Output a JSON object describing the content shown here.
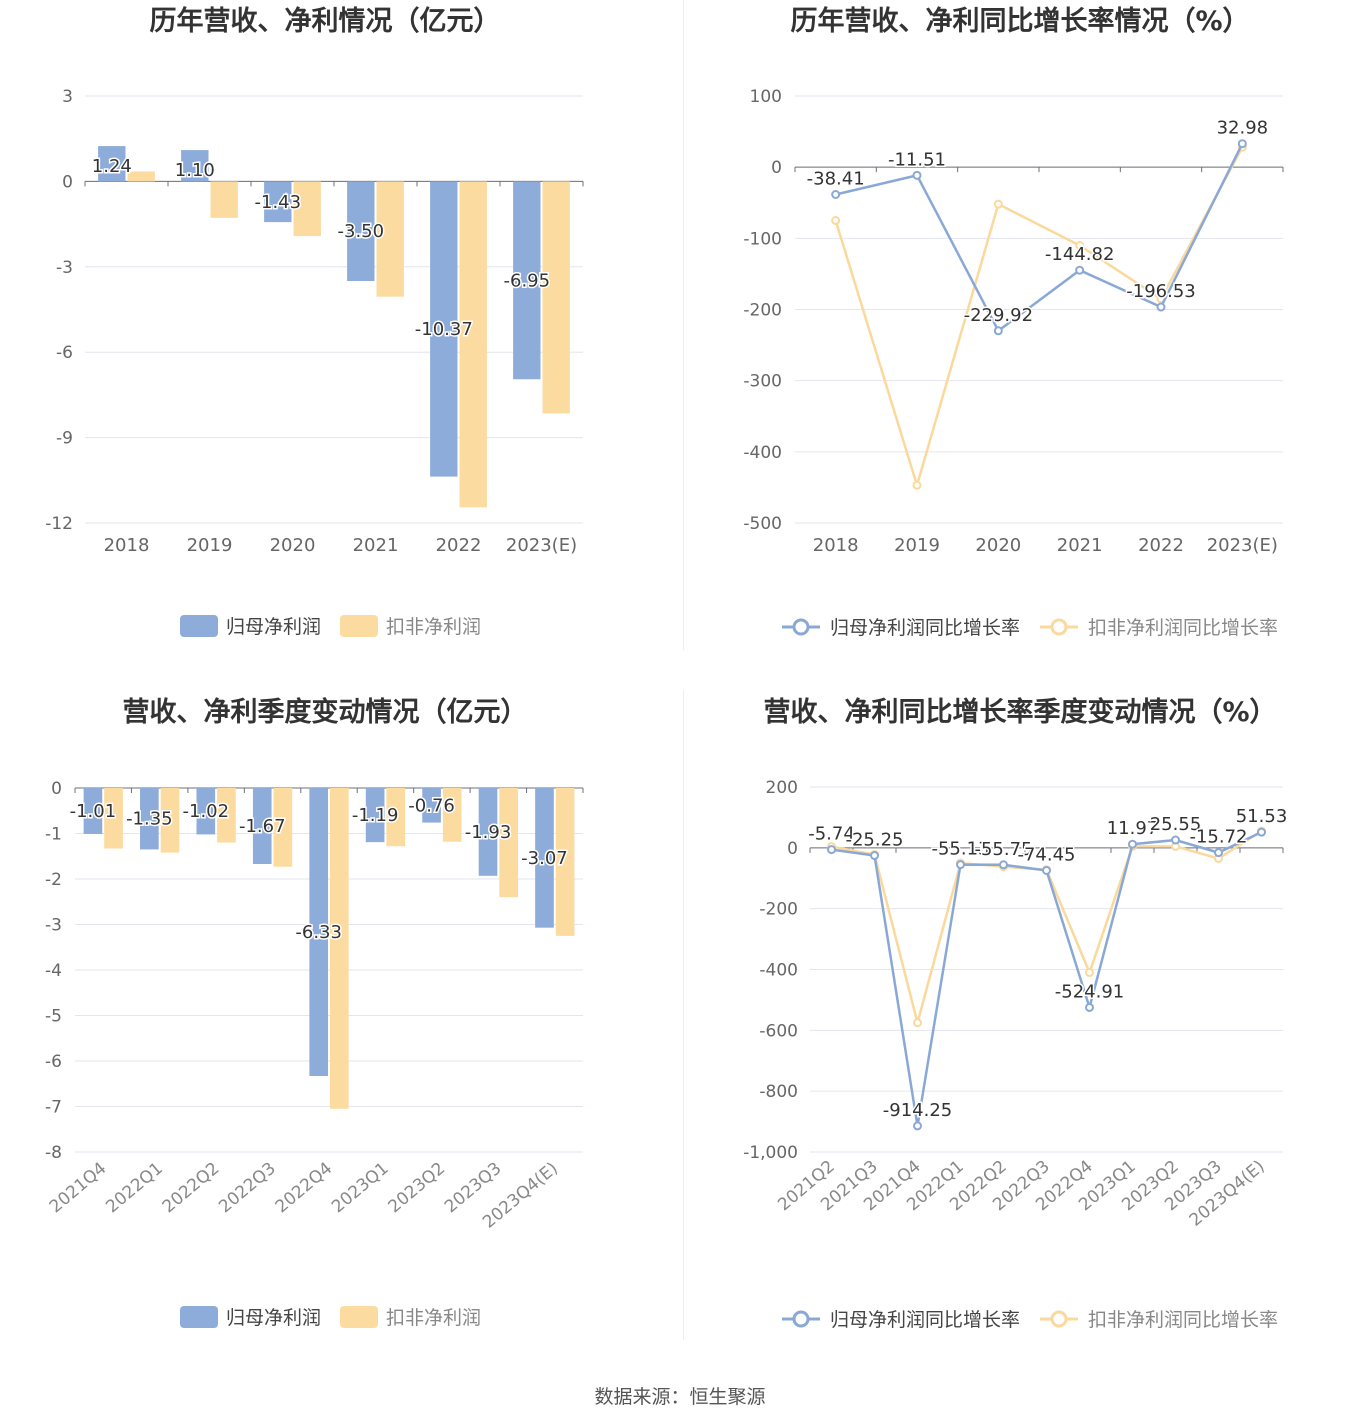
{
  "colors": {
    "blue": "#8eacd9",
    "yellow": "#fcdba0",
    "blue_line": "#8aa8d6",
    "yellow_line": "#fbd89b"
  },
  "source": "数据来源：恒生聚源",
  "chart_data": [
    {
      "type": "bar",
      "title": "历年营收、净利情况（亿元）",
      "categories": [
        "2018",
        "2019",
        "2020",
        "2021",
        "2022",
        "2023(E)"
      ],
      "series": [
        {
          "name": "归母净利润",
          "values": [
            1.24,
            1.1,
            -1.43,
            -3.5,
            -10.37,
            -6.95
          ]
        },
        {
          "name": "扣非净利润",
          "values": [
            0.35,
            -1.28,
            -1.92,
            -4.05,
            -11.45,
            -8.15
          ]
        }
      ],
      "labels": [
        "1.24",
        "1.10",
        "-1.43",
        "-3.50",
        "-10.37",
        "-6.95"
      ],
      "yticks": [
        "3",
        "0",
        "-3",
        "-6",
        "-9",
        "-12"
      ],
      "ylim": [
        -12,
        3
      ],
      "legend_position": "bottom"
    },
    {
      "type": "line",
      "title": "历年营收、净利同比增长率情况（%）",
      "categories": [
        "2018",
        "2019",
        "2020",
        "2021",
        "2022",
        "2023(E)"
      ],
      "series": [
        {
          "name": "归母净利润同比增长率",
          "values": [
            -38.41,
            -11.51,
            -229.92,
            -144.82,
            -196.53,
            32.98
          ]
        },
        {
          "name": "扣非净利润同比增长率",
          "values": [
            -75,
            -447,
            -52,
            -110,
            -185,
            28
          ]
        }
      ],
      "labels": [
        "-38.41",
        "-11.51",
        "-229.92",
        "-144.82",
        "-196.53",
        "32.98"
      ],
      "yticks": [
        "100",
        "0",
        "-100",
        "-200",
        "-300",
        "-400",
        "-500"
      ],
      "ylim": [
        -500,
        100
      ],
      "legend_position": "bottom"
    },
    {
      "type": "bar",
      "title": "营收、净利季度变动情况（亿元）",
      "categories": [
        "2021Q4",
        "2022Q1",
        "2022Q2",
        "2022Q3",
        "2022Q4",
        "2023Q1",
        "2023Q2",
        "2023Q3",
        "2023Q4(E)"
      ],
      "series": [
        {
          "name": "归母净利润",
          "values": [
            -1.01,
            -1.35,
            -1.02,
            -1.67,
            -6.33,
            -1.19,
            -0.76,
            -1.93,
            -3.07
          ]
        },
        {
          "name": "扣非净利润",
          "values": [
            -1.33,
            -1.42,
            -1.2,
            -1.73,
            -7.05,
            -1.28,
            -1.18,
            -2.4,
            -3.25
          ]
        }
      ],
      "labels": [
        "-1.01",
        "-1.35",
        "-1.02",
        "-1.67",
        "-6.33",
        "-1.19",
        "-0.76",
        "-1.93",
        "-3.07"
      ],
      "yticks": [
        "0",
        "-1",
        "-2",
        "-3",
        "-4",
        "-5",
        "-6",
        "-7",
        "-8"
      ],
      "ylim": [
        -8,
        0
      ],
      "legend_position": "bottom"
    },
    {
      "type": "line",
      "title": "营收、净利同比增长率季度变动情况（%）",
      "categories": [
        "2021Q2",
        "2021Q3",
        "2021Q4",
        "2022Q1",
        "2022Q2",
        "2022Q3",
        "2022Q4",
        "2023Q1",
        "2023Q2",
        "2023Q3",
        "2023Q4(E)"
      ],
      "series": [
        {
          "name": "归母净利润同比增长率",
          "values": [
            -5.74,
            -25.25,
            -914.25,
            -55.13,
            -55.75,
            -74.45,
            -524.91,
            11.97,
            25.55,
            -15.72,
            51.53
          ]
        },
        {
          "name": "扣非净利润同比增长率",
          "values": [
            4,
            -22,
            -575,
            -50,
            -62,
            -72,
            -410,
            5,
            5,
            -35,
            55
          ]
        }
      ],
      "labels": [
        "-5.74",
        "-25.25",
        "-914.25",
        "-55.13",
        "-55.75",
        "-74.45",
        "-524.91",
        "11.97",
        "25.55",
        "-15.72",
        "51.53"
      ],
      "yticks": [
        "200",
        "0",
        "-200",
        "-400",
        "-600",
        "-800",
        "-1,000"
      ],
      "ylim": [
        -1000,
        200
      ],
      "legend_position": "bottom"
    }
  ]
}
